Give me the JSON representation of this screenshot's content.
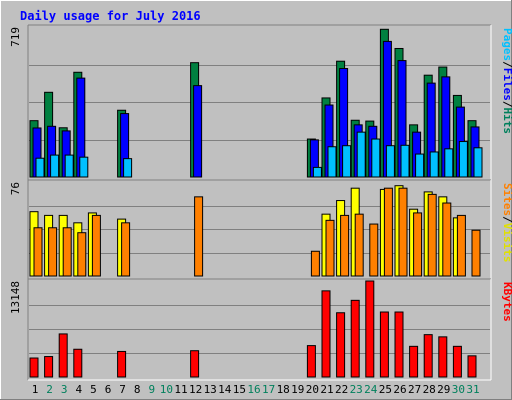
{
  "chart_data": {
    "type": "bar",
    "title": "Daily usage for July 2016",
    "categories": [
      "1",
      "2",
      "3",
      "4",
      "5",
      "6",
      "7",
      "8",
      "9",
      "10",
      "11",
      "12",
      "13",
      "14",
      "15",
      "16",
      "17",
      "18",
      "19",
      "20",
      "21",
      "22",
      "23",
      "24",
      "25",
      "26",
      "27",
      "28",
      "29",
      "30",
      "31"
    ],
    "weekend_days": [
      "2",
      "3",
      "9",
      "10",
      "16",
      "17",
      "23",
      "24",
      "30",
      "31"
    ],
    "panels": [
      {
        "id": "top",
        "ymax_label": "719",
        "ylim": [
          0,
          719
        ],
        "legend": [
          "Pages",
          "/",
          "Files",
          "/",
          "Hits"
        ],
        "series": [
          {
            "name": "Hits",
            "color": "#008040",
            "values": [
              270,
              406,
              236,
              502,
              0,
              0,
              320,
              0,
              0,
              0,
              0,
              548,
              0,
              0,
              0,
              0,
              0,
              0,
              0,
              182,
              379,
              555,
              272,
              268,
              708,
              616,
              250,
              488,
              527,
              391,
              270
            ]
          },
          {
            "name": "Files",
            "color": "#0000ff",
            "values": [
              235,
              243,
              221,
              474,
              0,
              0,
              304,
              0,
              0,
              0,
              0,
              438,
              0,
              0,
              0,
              0,
              0,
              0,
              0,
              178,
              345,
              520,
              250,
              243,
              650,
              558,
              215,
              450,
              480,
              335,
              240
            ]
          },
          {
            "name": "Pages",
            "color": "#00c0ff",
            "values": [
              90,
              105,
              105,
              95,
              0,
              0,
              88,
              0,
              0,
              0,
              0,
              0,
              0,
              0,
              0,
              0,
              0,
              0,
              0,
              46,
              145,
              150,
              215,
              182,
              150,
              152,
              110,
              120,
              135,
              170,
              140
            ]
          }
        ]
      },
      {
        "id": "middle",
        "ymax_label": "76",
        "ylim": [
          0,
          76
        ],
        "legend": [
          "Sites",
          "/",
          "Visits"
        ],
        "series": [
          {
            "name": "Visits",
            "color": "#ffff00",
            "values": [
              52,
              49,
              49,
              43,
              51,
              0,
              46,
              0,
              0,
              0,
              0,
              0,
              0,
              0,
              0,
              0,
              0,
              0,
              0,
              0,
              50,
              61,
              71,
              0,
              70,
              73,
              54,
              68,
              64,
              47,
              0
            ]
          },
          {
            "name": "Sites",
            "color": "#ff8000",
            "values": [
              39,
              39,
              39,
              35,
              49,
              0,
              43,
              0,
              0,
              0,
              0,
              64,
              0,
              0,
              0,
              0,
              0,
              0,
              0,
              20,
              45,
              49,
              50,
              42,
              71,
              71,
              51,
              66,
              59,
              49,
              37
            ]
          }
        ]
      },
      {
        "id": "bottom",
        "ymax_label": "13148",
        "ylim": [
          0,
          13148
        ],
        "legend": [
          "KBytes"
        ],
        "series": [
          {
            "name": "KBytes",
            "color": "#ff0000",
            "values": [
              2600,
              2800,
              5900,
              3800,
              0,
              0,
              3500,
              0,
              0,
              0,
              0,
              3600,
              0,
              0,
              0,
              0,
              0,
              0,
              0,
              4300,
              11800,
              8800,
              10500,
              13148,
              8900,
              8900,
              4200,
              5800,
              5500,
              4200,
              2900
            ]
          }
        ]
      }
    ],
    "colors": {
      "background": "#c0c0c0",
      "title": "#0000ff",
      "label": "#000000",
      "weekend_label": "#00805c",
      "gridline": "#808080",
      "legend_slash": "#000000"
    }
  }
}
